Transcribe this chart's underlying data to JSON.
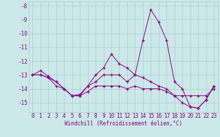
{
  "xlabel": "Windchill (Refroidissement éolien,°C)",
  "background_color": "#cce8e8",
  "grid_color": "#aacece",
  "line_color": "#880088",
  "hours": [
    0,
    1,
    2,
    3,
    4,
    5,
    6,
    7,
    8,
    9,
    10,
    11,
    12,
    13,
    14,
    15,
    16,
    17,
    18,
    19,
    20,
    21,
    22,
    23
  ],
  "series1": [
    -13.0,
    -12.7,
    -13.1,
    -13.5,
    -14.0,
    -14.5,
    -14.5,
    -13.8,
    -13.0,
    -12.5,
    -11.5,
    -12.2,
    -12.5,
    -13.0,
    -10.5,
    -8.3,
    -9.2,
    -10.5,
    -13.5,
    -14.0,
    -15.3,
    -15.4,
    -14.8,
    -13.8
  ],
  "series2": [
    -13.0,
    -13.0,
    -13.2,
    -13.5,
    -14.0,
    -14.5,
    -14.4,
    -13.8,
    -13.5,
    -13.0,
    -13.0,
    -13.0,
    -13.5,
    -13.0,
    -13.2,
    -13.5,
    -13.8,
    -14.0,
    -14.5,
    -15.0,
    -15.3,
    -15.4,
    -14.8,
    -13.8
  ],
  "series3": [
    -13.0,
    -13.0,
    -13.2,
    -13.8,
    -14.0,
    -14.5,
    -14.5,
    -14.2,
    -13.8,
    -13.8,
    -13.8,
    -13.8,
    -14.0,
    -13.8,
    -14.0,
    -14.0,
    -14.0,
    -14.2,
    -14.5,
    -14.5,
    -14.5,
    -14.5,
    -14.5,
    -14.0
  ],
  "ylim": [
    -15.7,
    -7.7
  ],
  "yticks": [
    -15,
    -14,
    -13,
    -12,
    -11,
    -10,
    -9,
    -8
  ],
  "marker": "+",
  "markersize": 3,
  "tick_fontsize": 5.5,
  "xlabel_fontsize": 5.5
}
